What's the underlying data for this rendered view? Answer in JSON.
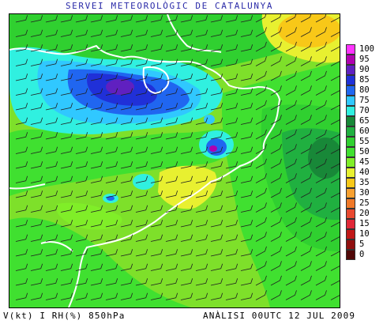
{
  "header": {
    "title": "SERVEI METEOROLÒGIC DE CATALUNYA"
  },
  "footer": {
    "variables": "V(kt) I RH(%) 850hPa",
    "analysis": "ANÀLISI 00UTC 12 JUL 2009"
  },
  "legend": {
    "items": [
      {
        "label": "100",
        "color": "#ff33ff"
      },
      {
        "label": "95",
        "color": "#b000b0"
      },
      {
        "label": "90",
        "color": "#6020c0"
      },
      {
        "label": "85",
        "color": "#2030d8"
      },
      {
        "label": "80",
        "color": "#2066f0"
      },
      {
        "label": "75",
        "color": "#30c8ff"
      },
      {
        "label": "70",
        "color": "#30f0e0"
      },
      {
        "label": "65",
        "color": "#188838"
      },
      {
        "label": "60",
        "color": "#20b040"
      },
      {
        "label": "55",
        "color": "#30d030"
      },
      {
        "label": "50",
        "color": "#40e030"
      },
      {
        "label": "45",
        "color": "#80ee28"
      },
      {
        "label": "40",
        "color": "#e8f030"
      },
      {
        "label": "35",
        "color": "#f8c818"
      },
      {
        "label": "30",
        "color": "#f8a030"
      },
      {
        "label": "25",
        "color": "#f07828"
      },
      {
        "label": "20",
        "color": "#e84830"
      },
      {
        "label": "15",
        "color": "#e02838"
      },
      {
        "label": "10",
        "color": "#c01818"
      },
      {
        "label": "5",
        "color": "#901010"
      },
      {
        "label": "0",
        "color": "#500808"
      }
    ]
  },
  "map": {
    "field": "relative-humidity",
    "overlay": "wind-barbs",
    "colors": {
      "base": "#7ee02a",
      "border": "#ffffff",
      "barb": "#202020"
    }
  }
}
